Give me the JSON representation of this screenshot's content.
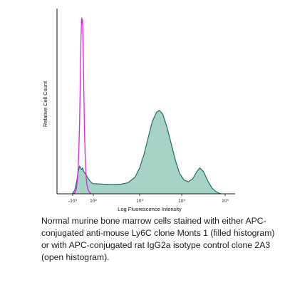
{
  "caption": "Normal murine bone marrow cells stained with either APC-conjugated anti-mouse Ly6C clone Monts 1 (filled histogram) or with APC-conjugated rat IgG2a isotype control clone 2A3 (open histogram).",
  "chart_data": {
    "type": "area",
    "xlabel": "Log Fluorescence Intensity",
    "ylabel": "Relative Cell Count",
    "xscale": "biexponential",
    "x_ticks": [
      {
        "value": -1000,
        "label": "-10³"
      },
      {
        "value": 100,
        "label": "10²"
      },
      {
        "value": 1000,
        "label": "10³"
      },
      {
        "value": 10000,
        "label": "10⁴"
      },
      {
        "value": 100000,
        "label": "10⁵"
      }
    ],
    "ylim": [
      0,
      1
    ],
    "grid": false,
    "series": [
      {
        "style": "filled",
        "fill_color": "#a7d3c7",
        "line_color": "#1f6e63",
        "points": [
          [
            -1.05,
            0.0
          ],
          [
            -0.7,
            0.02
          ],
          [
            -0.4,
            0.07
          ],
          [
            -0.2,
            0.12
          ],
          [
            0.0,
            0.15
          ],
          [
            0.15,
            0.14
          ],
          [
            0.3,
            0.13
          ],
          [
            0.45,
            0.14
          ],
          [
            0.6,
            0.12
          ],
          [
            0.8,
            0.11
          ],
          [
            1.0,
            0.1
          ],
          [
            1.2,
            0.085
          ],
          [
            1.4,
            0.075
          ],
          [
            1.6,
            0.065
          ],
          [
            1.8,
            0.058
          ],
          [
            2.0,
            0.055
          ],
          [
            2.2,
            0.052
          ],
          [
            2.4,
            0.05
          ],
          [
            2.6,
            0.052
          ],
          [
            2.75,
            0.06
          ],
          [
            2.9,
            0.09
          ],
          [
            3.0,
            0.14
          ],
          [
            3.1,
            0.21
          ],
          [
            3.2,
            0.3
          ],
          [
            3.3,
            0.39
          ],
          [
            3.4,
            0.44
          ],
          [
            3.47,
            0.45
          ],
          [
            3.55,
            0.43
          ],
          [
            3.65,
            0.36
          ],
          [
            3.75,
            0.27
          ],
          [
            3.85,
            0.18
          ],
          [
            3.95,
            0.11
          ],
          [
            4.05,
            0.075
          ],
          [
            4.15,
            0.065
          ],
          [
            4.25,
            0.08
          ],
          [
            4.35,
            0.12
          ],
          [
            4.42,
            0.14
          ],
          [
            4.5,
            0.12
          ],
          [
            4.6,
            0.07
          ],
          [
            4.7,
            0.03
          ],
          [
            4.8,
            0.01
          ],
          [
            4.9,
            0.0
          ]
        ]
      },
      {
        "style": "open",
        "line_color": "#e020e0",
        "points": [
          [
            -0.85,
            0.0
          ],
          [
            -0.6,
            0.01
          ],
          [
            -0.45,
            0.03
          ],
          [
            -0.3,
            0.08
          ],
          [
            -0.2,
            0.14
          ],
          [
            -0.1,
            0.24
          ],
          [
            0.0,
            0.38
          ],
          [
            0.08,
            0.55
          ],
          [
            0.15,
            0.72
          ],
          [
            0.22,
            0.86
          ],
          [
            0.28,
            0.93
          ],
          [
            0.33,
            0.95
          ],
          [
            0.38,
            0.92
          ],
          [
            0.43,
            0.94
          ],
          [
            0.48,
            0.86
          ],
          [
            0.55,
            0.72
          ],
          [
            0.63,
            0.52
          ],
          [
            0.72,
            0.34
          ],
          [
            0.82,
            0.2
          ],
          [
            0.92,
            0.11
          ],
          [
            1.05,
            0.055
          ],
          [
            1.2,
            0.025
          ],
          [
            1.4,
            0.01
          ],
          [
            1.7,
            0.0
          ]
        ]
      }
    ]
  }
}
